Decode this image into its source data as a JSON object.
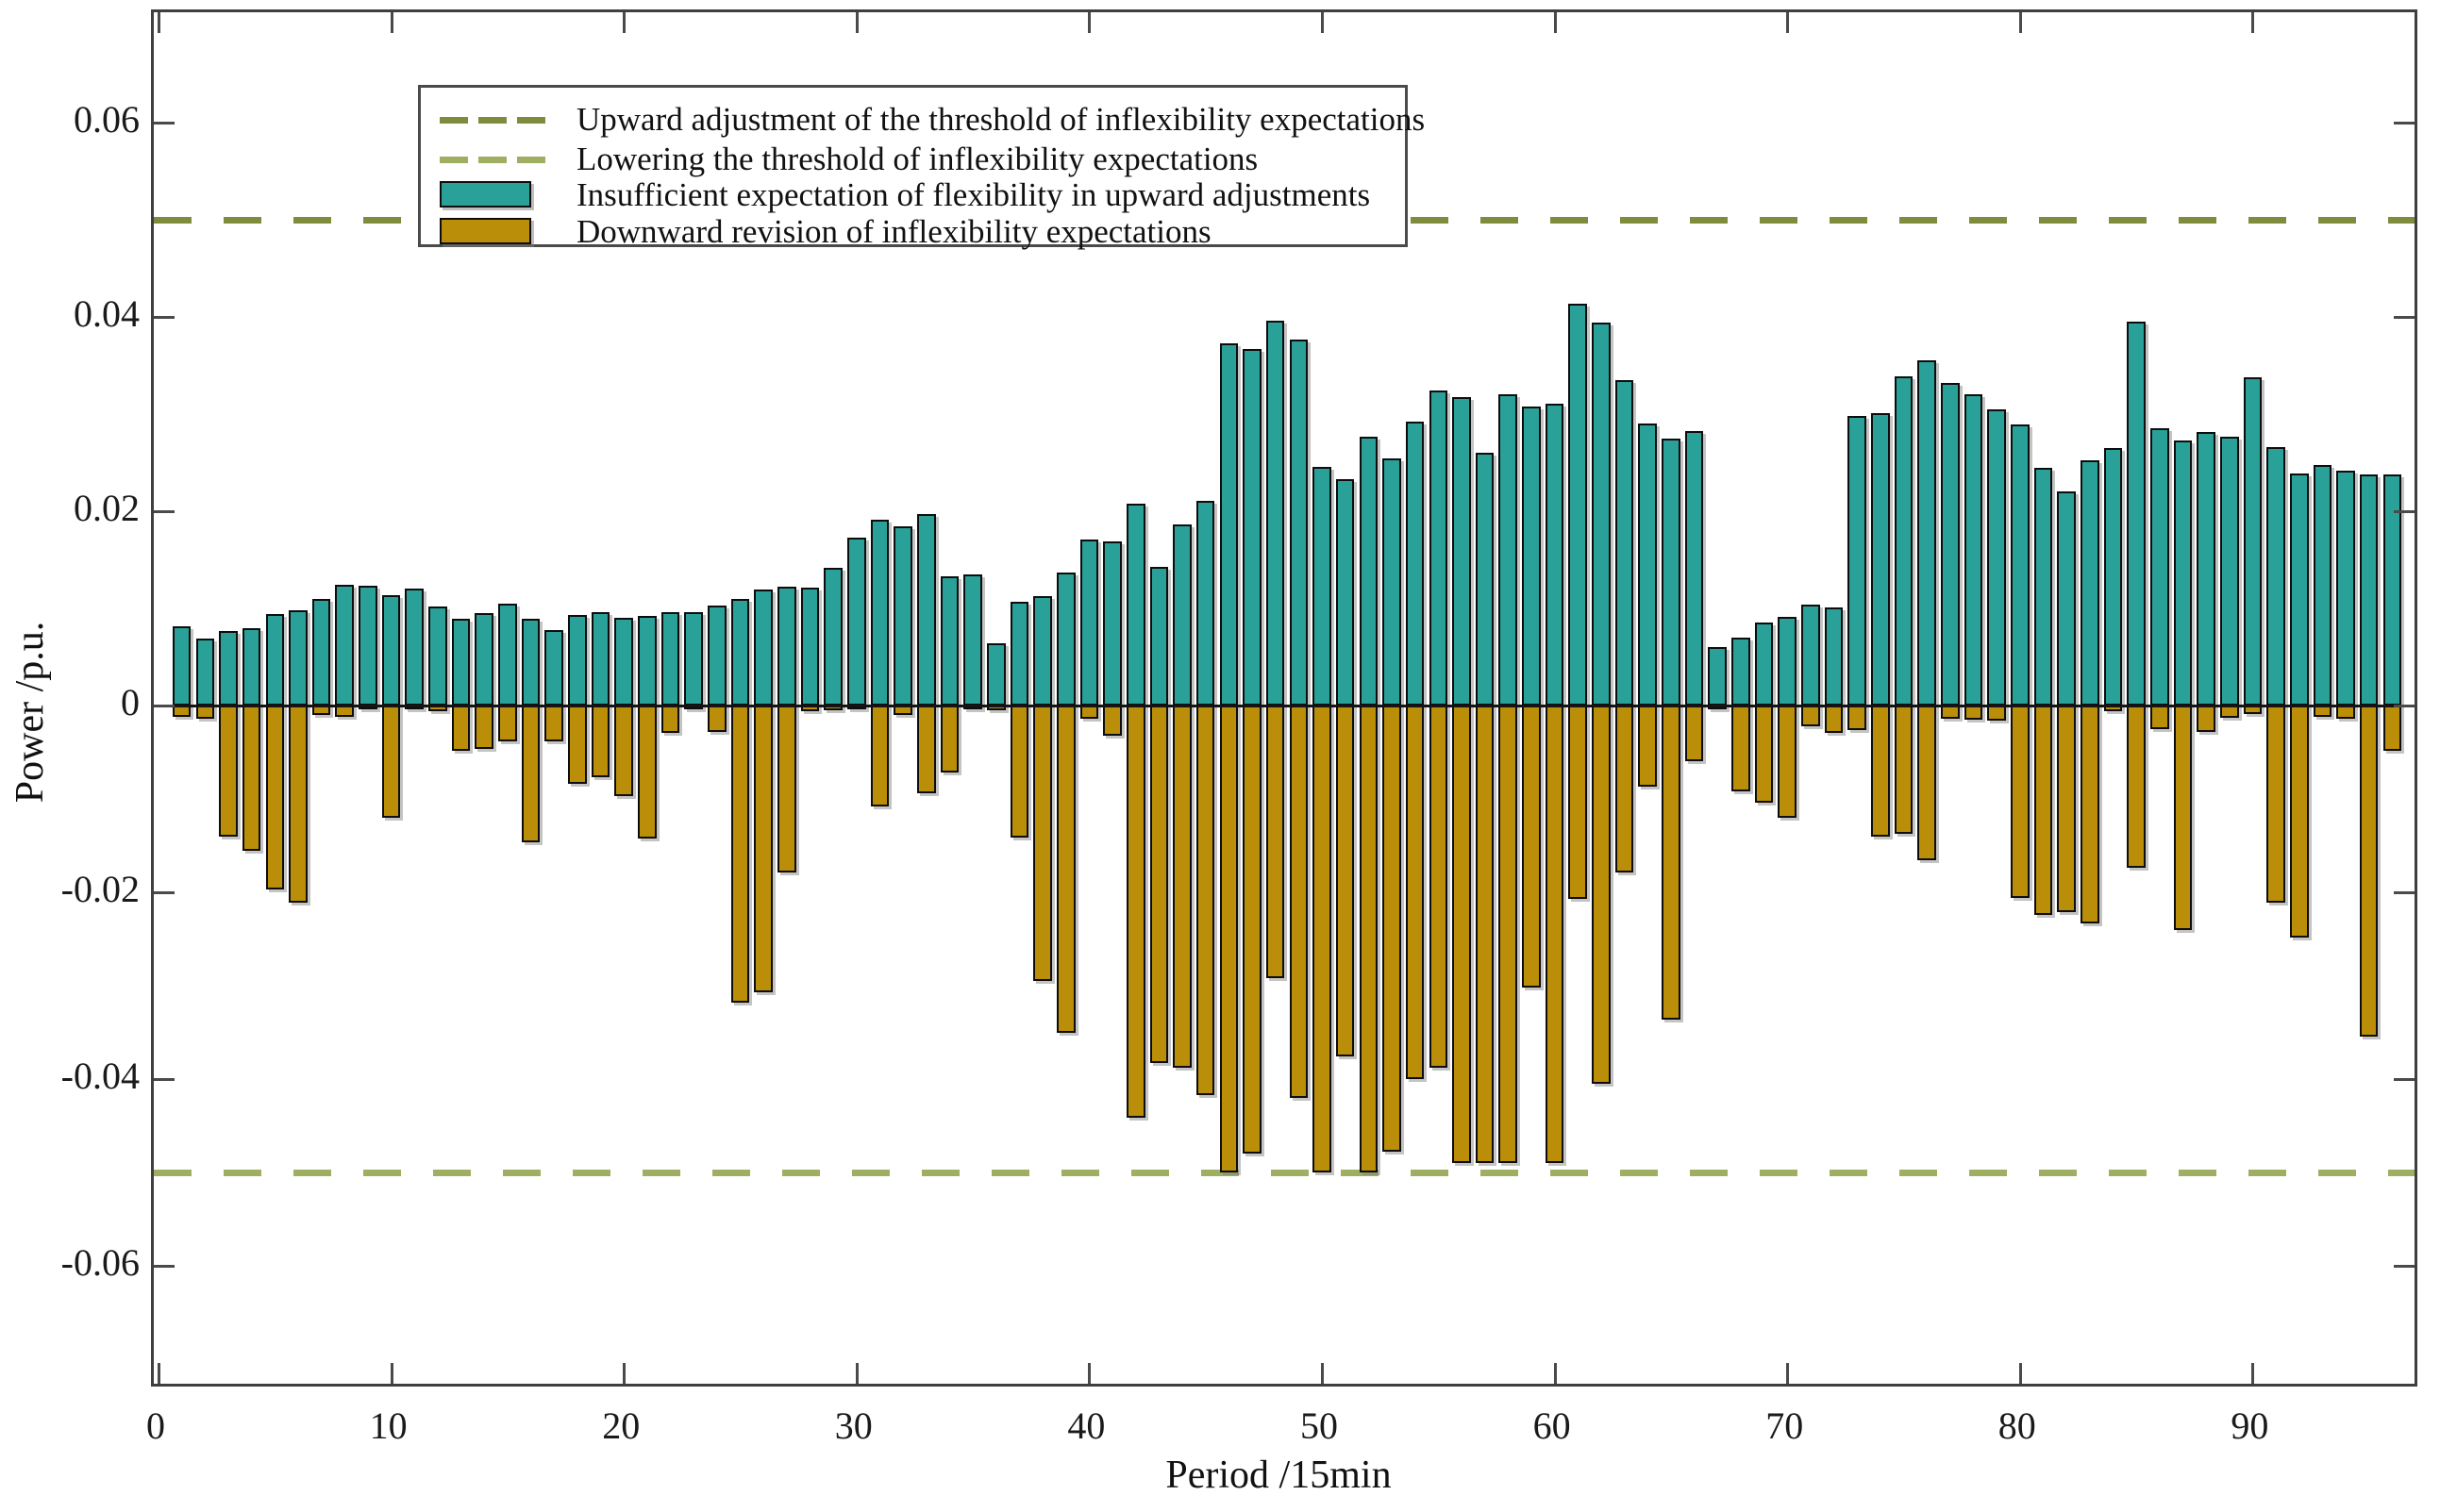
{
  "axes": {
    "ylabel": "Power /p.u.",
    "xlabel": "Period /15min",
    "yticks": [
      0.06,
      0.04,
      0.02,
      0,
      -0.02,
      -0.04,
      -0.06
    ],
    "ytick_labels": [
      "0.06",
      "0.04",
      "0.02",
      "0",
      "-0.02",
      "-0.04",
      "-0.06"
    ],
    "xticks": [
      0,
      10,
      20,
      30,
      40,
      50,
      60,
      70,
      80,
      90
    ],
    "xtick_labels": [
      "0",
      "10",
      "20",
      "30",
      "40",
      "50",
      "60",
      "70",
      "80",
      "90"
    ]
  },
  "colors": {
    "positive_bar": "#2aa198",
    "negative_bar": "#ba8e08",
    "upper_threshold": "#7e8c3e",
    "lower_threshold": "#9faf62",
    "axis": "#3f3f3f",
    "zero_line": "#141414"
  },
  "legend": {
    "items": [
      {
        "type": "dash",
        "color": "#7e8c3e",
        "label": "Upward adjustment of the threshold of inflexibility expectations"
      },
      {
        "type": "dash",
        "color": "#9faf62",
        "label": "Lowering the threshold of inflexibility expectations"
      },
      {
        "type": "patch",
        "color": "#2aa198",
        "label": "Insufficient expectation of flexibility in upward adjustments"
      },
      {
        "type": "patch",
        "color": "#ba8e08",
        "label": "Downward revision of inflexibility expectations"
      }
    ]
  },
  "chart_data": {
    "type": "bar",
    "title": "",
    "xlabel": "Period /15min",
    "ylabel": "Power /p.u.",
    "xlim": [
      -0.2,
      97.2
    ],
    "ylim": [
      -0.0735,
      0.0712
    ],
    "grid": false,
    "legend_position": "upper-left-inside",
    "threshold_upper": 0.05,
    "threshold_lower": -0.05,
    "x": [
      1,
      2,
      3,
      4,
      5,
      6,
      7,
      8,
      9,
      10,
      11,
      12,
      13,
      14,
      15,
      16,
      17,
      18,
      19,
      20,
      21,
      22,
      23,
      24,
      25,
      26,
      27,
      28,
      29,
      30,
      31,
      32,
      33,
      34,
      35,
      36,
      37,
      38,
      39,
      40,
      41,
      42,
      43,
      44,
      45,
      46,
      47,
      48,
      49,
      50,
      51,
      52,
      53,
      54,
      55,
      56,
      57,
      58,
      59,
      60,
      61,
      62,
      63,
      64,
      65,
      66,
      67,
      68,
      69,
      70,
      71,
      72,
      73,
      74,
      75,
      76,
      77,
      78,
      79,
      80,
      81,
      82,
      83,
      84,
      85,
      86,
      87,
      88,
      89,
      90,
      91,
      92,
      93,
      94,
      95,
      96
    ],
    "series": [
      {
        "name": "Insufficient expectation of flexibility in upward adjustments",
        "color": "#2aa198",
        "values": [
          0.0082,
          0.0069,
          0.0077,
          0.008,
          0.0094,
          0.0098,
          0.011,
          0.0124,
          0.0123,
          0.0114,
          0.012,
          0.0102,
          0.0089,
          0.0095,
          0.0105,
          0.0089,
          0.0078,
          0.0093,
          0.0096,
          0.009,
          0.0092,
          0.0096,
          0.0096,
          0.0103,
          0.011,
          0.0119,
          0.0122,
          0.0121,
          0.0142,
          0.0173,
          0.0191,
          0.0184,
          0.0197,
          0.0133,
          0.0135,
          0.0064,
          0.0107,
          0.0113,
          0.0137,
          0.0171,
          0.0169,
          0.0208,
          0.0143,
          0.0186,
          0.0211,
          0.0373,
          0.0367,
          0.0396,
          0.0377,
          0.0246,
          0.0233,
          0.0277,
          0.0254,
          0.0292,
          0.0324,
          0.0317,
          0.026,
          0.032,
          0.0308,
          0.0311,
          0.0414,
          0.0394,
          0.0335,
          0.029,
          0.0275,
          0.0283,
          0.006,
          0.007,
          0.0085,
          0.0091,
          0.0104,
          0.0101,
          0.0298,
          0.0301,
          0.0339,
          0.0355,
          0.0332,
          0.032,
          0.0305,
          0.0289,
          0.0245,
          0.022,
          0.0252,
          0.0265,
          0.0395,
          0.0285,
          0.0273,
          0.0282,
          0.0277,
          0.0338,
          0.0266,
          0.0239,
          0.0248,
          0.0242,
          0.0238,
          0.0238
        ]
      },
      {
        "name": "Downward revision of inflexibility expectations",
        "color": "#ba8e08",
        "values": [
          -0.0012,
          -0.0014,
          -0.014,
          -0.0156,
          -0.0197,
          -0.0211,
          -0.001,
          -0.0012,
          -0.0003,
          -0.012,
          -0.0003,
          -0.0006,
          -0.0048,
          -0.0046,
          -0.0038,
          -0.0146,
          -0.0038,
          -0.0084,
          -0.0077,
          -0.0097,
          -0.0142,
          -0.0029,
          -0.0002,
          -0.0028,
          -0.0318,
          -0.0307,
          -0.0179,
          -0.0006,
          -0.0005,
          -0.0003,
          -0.0108,
          -0.001,
          -0.0094,
          -0.0072,
          -0.0003,
          -0.0005,
          -0.0141,
          -0.0295,
          -0.035,
          -0.0014,
          -0.0032,
          -0.0441,
          -0.0383,
          -0.0388,
          -0.0417,
          -0.05,
          -0.048,
          -0.0292,
          -0.042,
          -0.05,
          -0.0376,
          -0.05,
          -0.0478,
          -0.04,
          -0.0388,
          -0.049,
          -0.049,
          -0.049,
          -0.0302,
          -0.049,
          -0.0207,
          -0.0405,
          -0.0179,
          -0.0087,
          -0.0336,
          -0.006,
          -0.0003,
          -0.0092,
          -0.0104,
          -0.012,
          -0.0022,
          -0.0029,
          -0.0026,
          -0.014,
          -0.0137,
          -0.0166,
          -0.0014,
          -0.0015,
          -0.0016,
          -0.0206,
          -0.0224,
          -0.0221,
          -0.0233,
          -0.0006,
          -0.0174,
          -0.0025,
          -0.024,
          -0.0028,
          -0.0013,
          -0.0009,
          -0.0211,
          -0.0248,
          -0.0012,
          -0.0014,
          -0.0355,
          -0.0048
        ]
      }
    ]
  }
}
